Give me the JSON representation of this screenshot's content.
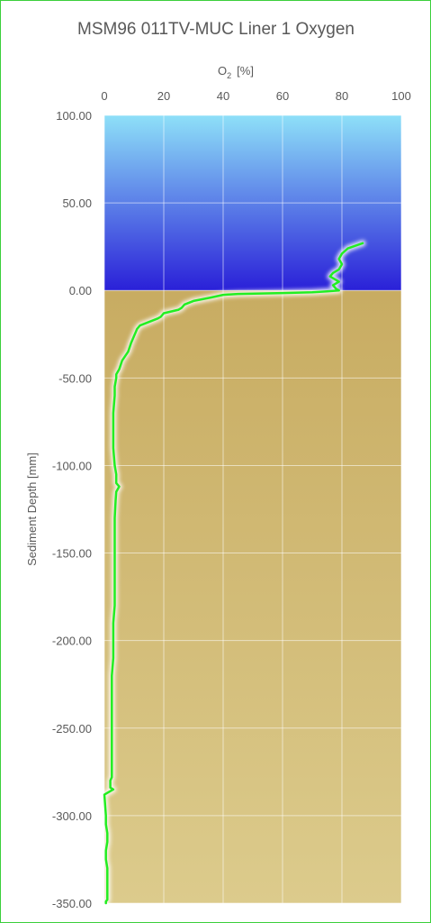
{
  "chart_data": {
    "type": "line",
    "title": "MSM96 011TV-MUC Liner 1 Oxygen",
    "xlabel_main": "O",
    "xlabel_sub": "2",
    "xlabel_unit": "[%]",
    "ylabel": "Sediment Depth [mm]",
    "xlim": [
      0,
      100
    ],
    "ylim": [
      -350,
      100
    ],
    "x_ticks": [
      "0",
      "20",
      "40",
      "60",
      "80",
      "100"
    ],
    "y_ticks": [
      "100.00",
      "50.00",
      "0.00",
      "-50.00",
      "-100.00",
      "-150.00",
      "-200.00",
      "-250.00",
      "-300.00",
      "-350.00"
    ],
    "grid": true,
    "colors": {
      "line": "#22ee22",
      "water_top": "#8ee0f8",
      "water_bottom": "#2a20d8",
      "sediment_top": "#c8ac62",
      "sediment_bottom": "#dccb8c"
    },
    "series": [
      {
        "x": [
          87,
          82,
          80,
          79,
          80,
          79,
          77,
          76,
          79,
          77,
          78,
          79,
          75,
          70,
          60,
          45,
          40,
          36,
          30,
          27,
          26,
          25,
          20,
          19,
          18,
          15,
          12,
          11,
          10.5,
          10,
          9,
          8,
          6,
          5,
          4,
          4,
          3.5,
          3.5,
          3,
          3,
          3,
          3.5,
          4,
          4,
          5,
          4,
          3.8,
          3.5,
          3.5,
          3.5,
          3.5,
          3.5,
          3.5,
          3,
          3,
          3,
          2.5,
          2.5,
          2.5,
          2.5,
          2.5,
          2.5,
          2.5,
          2.5,
          2.5,
          2,
          2,
          2,
          2,
          2,
          2,
          2,
          2,
          2,
          2,
          2,
          2,
          2,
          2,
          2,
          2,
          3,
          0,
          0.5,
          0.5,
          1,
          1,
          0.5,
          0.5,
          1,
          1,
          1,
          1,
          1,
          0.5,
          0.5,
          0.5
        ],
        "y": [
          27,
          24,
          21,
          18,
          15,
          12,
          10,
          8,
          5,
          3,
          1,
          0,
          -0.5,
          -1,
          -1.5,
          -2,
          -2.5,
          -4,
          -6,
          -8,
          -10,
          -11,
          -13,
          -15,
          -16,
          -18,
          -20,
          -22,
          -24,
          -26,
          -30,
          -35,
          -40,
          -45,
          -48,
          -50,
          -55,
          -60,
          -70,
          -80,
          -90,
          -100,
          -105,
          -110,
          -112,
          -115,
          -120,
          -130,
          -140,
          -150,
          -160,
          -170,
          -180,
          -190,
          -200,
          -210,
          -220,
          -230,
          -240,
          -250,
          -260,
          -265,
          -270,
          -275,
          -278,
          -280,
          -280,
          -280,
          -280,
          -280,
          -280,
          -280,
          -281,
          -281,
          -281,
          -281,
          -281,
          -282,
          -282,
          -283,
          -284,
          -285,
          -288,
          -300,
          -305,
          -310,
          -315,
          -320,
          -325,
          -330,
          -335,
          -340,
          -345,
          -348,
          -349,
          -350,
          -350
        ]
      }
    ]
  }
}
